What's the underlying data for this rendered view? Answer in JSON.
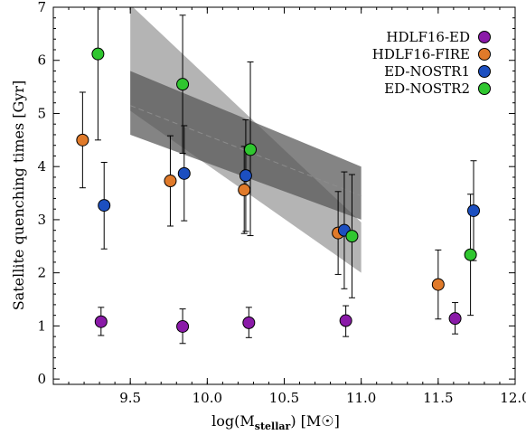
{
  "chart_data": {
    "type": "scatter",
    "title": "",
    "xlabel": "log(M",
    "xlabel_sub": "stellar",
    "xlabel_tail": ") [M",
    "xlabel_end": "]",
    "ylabel": "Satellite quenching times [Gyr]",
    "xlim": [
      9.0,
      12.0
    ],
    "ylim": [
      -0.1,
      7.0
    ],
    "x_ticks": [
      9.5,
      10.0,
      10.5,
      11.0,
      11.5,
      12.0
    ],
    "x_tick_labels": [
      "9.5",
      "10.0",
      "10.5",
      "11.0",
      "11.5",
      "12.0"
    ],
    "y_ticks": [
      0,
      1,
      2,
      3,
      4,
      5,
      6,
      7
    ],
    "y_tick_labels": [
      "0",
      "1",
      "2",
      "3",
      "4",
      "5",
      "6",
      "7"
    ],
    "grid": false,
    "legend_position": "top-right",
    "bands": [
      {
        "x": [
          9.5,
          11.0
        ],
        "upper": [
          7.05,
          2.95
        ],
        "lower": [
          5.05,
          2.0
        ],
        "color": "#b4b4b4",
        "opacity": 1.0
      },
      {
        "x": [
          9.5,
          11.0
        ],
        "upper": [
          5.8,
          4.0
        ],
        "lower": [
          4.6,
          3.0
        ],
        "color": "#555555",
        "opacity": 0.72
      }
    ],
    "median_line": {
      "x": [
        9.5,
        11.0
      ],
      "y": [
        5.15,
        3.45
      ],
      "color": "#8c8c8c"
    },
    "series": [
      {
        "name": "HDLF16-ED",
        "color": "#8a1aa8",
        "points": [
          {
            "x": 9.31,
            "y": 1.08,
            "ylow": 0.82,
            "yhigh": 1.35
          },
          {
            "x": 9.84,
            "y": 0.99,
            "ylow": 0.67,
            "yhigh": 1.32
          },
          {
            "x": 10.27,
            "y": 1.06,
            "ylow": 0.78,
            "yhigh": 1.35
          },
          {
            "x": 10.9,
            "y": 1.1,
            "ylow": 0.8,
            "yhigh": 1.38
          },
          {
            "x": 11.61,
            "y": 1.14,
            "ylow": 0.85,
            "yhigh": 1.44
          }
        ]
      },
      {
        "name": "HDLF16-FIRE",
        "color": "#e07a2a",
        "points": [
          {
            "x": 9.19,
            "y": 4.5,
            "ylow": 3.6,
            "yhigh": 5.4
          },
          {
            "x": 9.76,
            "y": 3.73,
            "ylow": 2.88,
            "yhigh": 4.58
          },
          {
            "x": 10.24,
            "y": 3.56,
            "ylow": 2.74,
            "yhigh": 4.38
          },
          {
            "x": 10.85,
            "y": 2.75,
            "ylow": 1.97,
            "yhigh": 3.53
          },
          {
            "x": 11.5,
            "y": 1.78,
            "ylow": 1.13,
            "yhigh": 2.43
          }
        ]
      },
      {
        "name": "ED-NOSTR1",
        "color": "#1c4fc0",
        "points": [
          {
            "x": 9.33,
            "y": 3.27,
            "ylow": 2.45,
            "yhigh": 4.08
          },
          {
            "x": 9.85,
            "y": 3.87,
            "ylow": 2.98,
            "yhigh": 4.77
          },
          {
            "x": 10.25,
            "y": 3.83,
            "ylow": 2.78,
            "yhigh": 4.88
          },
          {
            "x": 10.89,
            "y": 2.8,
            "ylow": 1.7,
            "yhigh": 3.9
          },
          {
            "x": 11.73,
            "y": 3.17,
            "ylow": 2.23,
            "yhigh": 4.11
          }
        ]
      },
      {
        "name": "ED-NOSTR2",
        "color": "#2fc62f",
        "points": [
          {
            "x": 9.29,
            "y": 6.12,
            "ylow": 4.5,
            "yhigh": 7.0
          },
          {
            "x": 9.84,
            "y": 5.55,
            "ylow": 4.25,
            "yhigh": 6.85
          },
          {
            "x": 10.28,
            "y": 4.32,
            "ylow": 2.7,
            "yhigh": 5.97
          },
          {
            "x": 10.94,
            "y": 2.69,
            "ylow": 1.53,
            "yhigh": 3.85
          },
          {
            "x": 11.71,
            "y": 2.34,
            "ylow": 1.2,
            "yhigh": 3.48
          }
        ]
      }
    ]
  }
}
